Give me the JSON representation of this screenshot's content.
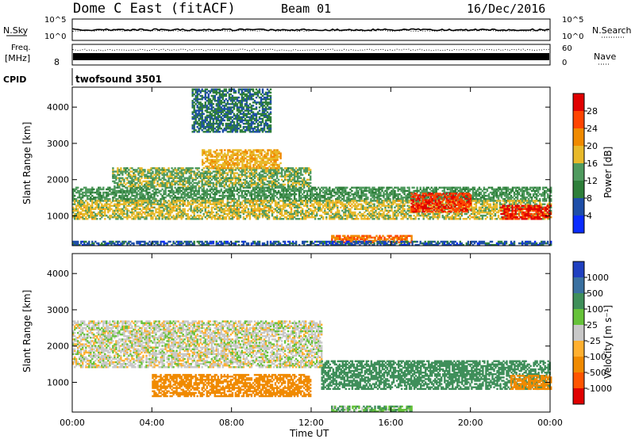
{
  "header": {
    "title": "Dome C East (fitACF)",
    "beam": "Beam 01",
    "date": "16/Dec/2016"
  },
  "strips": {
    "nsky_label": "N.Sky",
    "nsky_ticks": [
      "10^5",
      "10^0"
    ],
    "nsearch_label": "N.Search",
    "nsearch_ticks": [
      "10^5",
      "10^0"
    ],
    "freq_label_line1": "Freq.",
    "freq_label_line2": "[MHz]",
    "freq_ticks": [
      "8"
    ],
    "nave_label": "Nave",
    "nave_ticks": [
      "60",
      "0"
    ],
    "cpid_label": "CPID",
    "cpid_value": "twofsound 3501"
  },
  "colors": {
    "power": [
      "#0a2cff",
      "#1e4ea8",
      "#2e7f3a",
      "#4f9a5e",
      "#e8b92a",
      "#f08a00",
      "#ff4400",
      "#e00000"
    ],
    "velocity": [
      "#2040c0",
      "#3a70a0",
      "#3f8f5a",
      "#66c23a",
      "#c8c8c8",
      "#ffb030",
      "#f08a00",
      "#ff5500",
      "#e00000"
    ]
  },
  "chart_data": [
    {
      "type": "heatmap",
      "panel": "power",
      "xlabel": "",
      "ylabel": "Slant Range [km]",
      "xlim_hours_ut": [
        0,
        24
      ],
      "ylim_km": [
        180,
        4550
      ],
      "yticks": [
        "1000",
        "2000",
        "3000",
        "4000"
      ],
      "colorbar": {
        "label": "Power [dB]",
        "ticks": [
          "4",
          "8",
          "12",
          "16",
          "20",
          "24",
          "28"
        ],
        "range": [
          0,
          30
        ]
      },
      "echo_regions": [
        {
          "t_start": 0.0,
          "t_end": 24.0,
          "range_km": [
            1400,
            1800
          ],
          "level_db": 12
        },
        {
          "t_start": 0.0,
          "t_end": 24.0,
          "range_km": [
            900,
            1400
          ],
          "level_db": 16
        },
        {
          "t_start": 2.0,
          "t_end": 12.0,
          "range_km": [
            1800,
            2300
          ],
          "level_db": 14
        },
        {
          "t_start": 6.5,
          "t_end": 10.5,
          "range_km": [
            2300,
            2800
          ],
          "level_db": 18
        },
        {
          "t_start": 6.0,
          "t_end": 10.0,
          "range_km": [
            3300,
            4500
          ],
          "level_db": 8
        },
        {
          "t_start": 17.0,
          "t_end": 20.0,
          "range_km": [
            1100,
            1600
          ],
          "level_db": 26
        },
        {
          "t_start": 21.5,
          "t_end": 24.0,
          "range_km": [
            900,
            1300
          ],
          "level_db": 27
        },
        {
          "t_start": 13.0,
          "t_end": 17.0,
          "range_km": [
            250,
            450
          ],
          "level_db": 22
        },
        {
          "t_start": 0.0,
          "t_end": 24.0,
          "range_km": [
            180,
            300
          ],
          "level_db": 6
        }
      ]
    },
    {
      "type": "heatmap",
      "panel": "velocity",
      "xlabel": "Time UT",
      "ylabel": "Slant Range [km]",
      "xlim_hours_ut": [
        0,
        24
      ],
      "xticks": [
        "00:00",
        "04:00",
        "08:00",
        "12:00",
        "16:00",
        "20:00",
        "00:00"
      ],
      "ylim_km": [
        180,
        4550
      ],
      "yticks": [
        "1000",
        "2000",
        "3000",
        "4000"
      ],
      "colorbar": {
        "label": "Velocity [m s⁻¹]",
        "ticks": [
          "1000",
          "500",
          "100",
          "25",
          "-25",
          "-100",
          "-500",
          "-1000"
        ]
      },
      "echo_regions": [
        {
          "t_start": 0.0,
          "t_end": 12.5,
          "range_km": [
            1400,
            2700
          ],
          "velocity_ms": 0
        },
        {
          "t_start": 12.5,
          "t_end": 24.0,
          "range_km": [
            800,
            1600
          ],
          "velocity_ms": 200
        },
        {
          "t_start": 4.0,
          "t_end": 12.0,
          "range_km": [
            600,
            1200
          ],
          "velocity_ms": -150
        },
        {
          "t_start": 22.0,
          "t_end": 24.0,
          "range_km": [
            800,
            1200
          ],
          "velocity_ms": -200
        },
        {
          "t_start": 13.0,
          "t_end": 17.0,
          "range_km": [
            180,
            350
          ],
          "velocity_ms": 60
        }
      ]
    }
  ]
}
